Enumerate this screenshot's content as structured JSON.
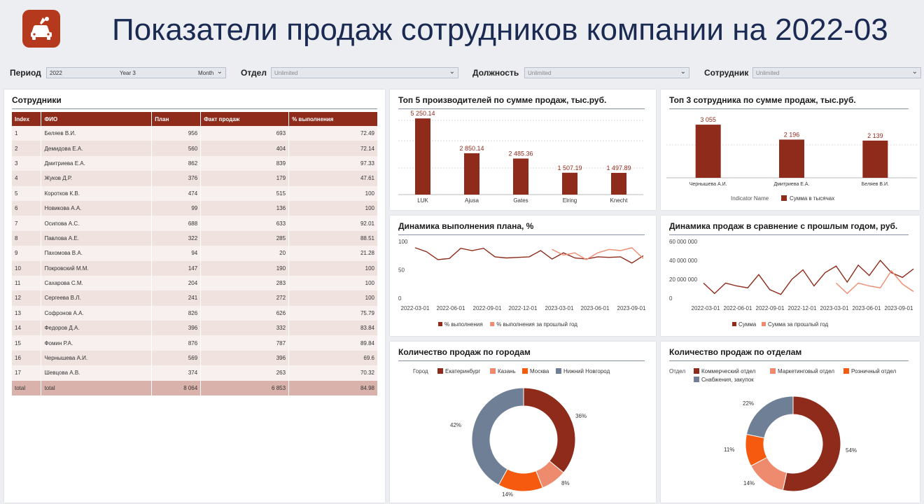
{
  "header": {
    "title": "Показатели продаж сотрудников компании на 2022-03",
    "logo_icon": "car-service-icon"
  },
  "filters": {
    "period_label": "Период",
    "year": "2022",
    "quarter": "Year 3",
    "month": "Month",
    "dept_label": "Отдел",
    "dept_value": "Unlimited",
    "position_label": "Должность",
    "position_value": "Unlimited",
    "employee_label": "Сотрудник",
    "employee_value": "Unlimited"
  },
  "employees": {
    "title": "Сотрудники",
    "columns": [
      "Index",
      "ФИО",
      "План",
      "Факт продаж",
      "% выполнения"
    ],
    "rows": [
      [
        "1",
        "Беляев В.И.",
        "956",
        "693",
        "72.49"
      ],
      [
        "2",
        "Демидова Е.А.",
        "560",
        "404",
        "72.14"
      ],
      [
        "3",
        "Дмитриева Е.А.",
        "862",
        "839",
        "97.33"
      ],
      [
        "4",
        "Жуков Д.Р.",
        "376",
        "179",
        "47.61"
      ],
      [
        "5",
        "Коротков К.В.",
        "474",
        "515",
        "100"
      ],
      [
        "6",
        "Новикова А.А.",
        "99",
        "136",
        "100"
      ],
      [
        "7",
        "Осипова А.С.",
        "688",
        "633",
        "92.01"
      ],
      [
        "8",
        "Павлова А.Е.",
        "322",
        "285",
        "88.51"
      ],
      [
        "9",
        "Пахомова В.А.",
        "94",
        "20",
        "21.28"
      ],
      [
        "10",
        "Покровский М.М.",
        "147",
        "190",
        "100"
      ],
      [
        "11",
        "Сахарова С.М.",
        "204",
        "283",
        "100"
      ],
      [
        "12",
        "Сергеева В.Л.",
        "241",
        "272",
        "100"
      ],
      [
        "13",
        "Софронов А.А.",
        "826",
        "626",
        "75.79"
      ],
      [
        "14",
        "Федоров Д.А.",
        "396",
        "332",
        "83.84"
      ],
      [
        "15",
        "Фомин Р.А.",
        "876",
        "787",
        "89.84"
      ],
      [
        "16",
        "Чернышева А.И.",
        "569",
        "396",
        "69.6"
      ],
      [
        "17",
        "Шевцова А.В.",
        "374",
        "263",
        "70.32"
      ]
    ],
    "total": [
      "total",
      "total",
      "8 064",
      "6 853",
      "84.98"
    ]
  },
  "colors": {
    "primary": "#8e2b1b",
    "light": "#e9846c",
    "orange": "#f55a0e",
    "gray": "#6f7f96",
    "salmon": "#ee8b6e"
  },
  "chart_data": [
    {
      "type": "bar",
      "title": "Топ 5 производителей по сумме продаж, тыс.руб.",
      "categories": [
        "LUK",
        "Ajusa",
        "Gates",
        "Elring",
        "Knecht"
      ],
      "values": [
        5250.14,
        2850.14,
        2485.36,
        1507.19,
        1497.89
      ],
      "labels": [
        "5 250.14",
        "2 850.14",
        "2 485.36",
        "1 507.19",
        "1 497.89"
      ],
      "ylim": [
        0,
        5500
      ]
    },
    {
      "type": "bar",
      "title": "Топ 3 сотрудника по сумме продаж, тыс.руб.",
      "categories": [
        "Чернышева А.И.",
        "Дмитриева Е.А.",
        "Беляев В.И."
      ],
      "values": [
        3055,
        2196,
        2139
      ],
      "labels": [
        "3 055",
        "2 196",
        "2 139"
      ],
      "ylim": [
        0,
        3300
      ],
      "legend_title": "Indicator Name",
      "legend": [
        "Сумма в тысячах"
      ]
    },
    {
      "type": "line",
      "title": "Динамика выполнения плана, %",
      "x_ticks": [
        "2022-03-01",
        "2022-06-01",
        "2022-09-01",
        "2022-12-01",
        "2023-03-01",
        "2023-06-01",
        "2023-09-01"
      ],
      "y_ticks": [
        "100",
        "50",
        "0"
      ],
      "ylim": [
        0,
        100
      ],
      "series": [
        {
          "name": "% выполнения",
          "values": [
            89,
            82,
            68,
            70,
            88,
            84,
            88,
            73,
            71,
            72,
            73,
            84,
            69,
            80,
            71,
            69,
            73,
            72,
            73,
            62,
            75
          ]
        },
        {
          "name": "% выполнения за прошлый год",
          "values": [
            null,
            null,
            null,
            null,
            null,
            null,
            null,
            null,
            null,
            null,
            null,
            null,
            86,
            76,
            80,
            68,
            80,
            86,
            84,
            89,
            70
          ]
        }
      ]
    },
    {
      "type": "line",
      "title": "Динамика продаж в сравнение с прошлым годом, руб.",
      "x_ticks": [
        "2022-03-01",
        "2022-06-01",
        "2022-09-01",
        "2022-12-01",
        "2023-03-01",
        "2023-06-01",
        "2023-09-01"
      ],
      "y_ticks": [
        "60 000 000",
        "40 000 000",
        "20 000 000",
        "0"
      ],
      "ylim": [
        0,
        60000000
      ],
      "series": [
        {
          "name": "Сумма",
          "values": [
            16000000,
            5000000,
            16000000,
            13000000,
            11000000,
            25000000,
            9000000,
            4000000,
            20000000,
            30000000,
            13000000,
            27000000,
            34000000,
            17000000,
            35000000,
            24000000,
            40000000,
            27000000,
            22000000,
            31000000
          ]
        },
        {
          "name": "Сумма за прошлый год",
          "values": [
            null,
            null,
            null,
            null,
            null,
            null,
            null,
            null,
            null,
            null,
            null,
            null,
            16000000,
            5000000,
            16000000,
            13000000,
            11000000,
            29000000,
            15000000,
            7000000
          ]
        }
      ]
    },
    {
      "type": "pie",
      "title": "Количество продаж по городам",
      "legend_title": "Город",
      "categories": [
        "Екатеринбург",
        "Казань",
        "Москва",
        "Нижний Новгород"
      ],
      "values": [
        36,
        8,
        14,
        42
      ],
      "labels": [
        "36%",
        "8%",
        "14%",
        "42%"
      ]
    },
    {
      "type": "pie",
      "title": "Количество продаж по отделам",
      "legend_title": "Отдел",
      "categories": [
        "Коммерческий отдел",
        "Маркетинговый отдел",
        "Розничный отдел",
        "Снабжения, закупок"
      ],
      "values": [
        54,
        14,
        11,
        22
      ],
      "labels": [
        "54%",
        "14%",
        "11%",
        "22%"
      ]
    }
  ]
}
